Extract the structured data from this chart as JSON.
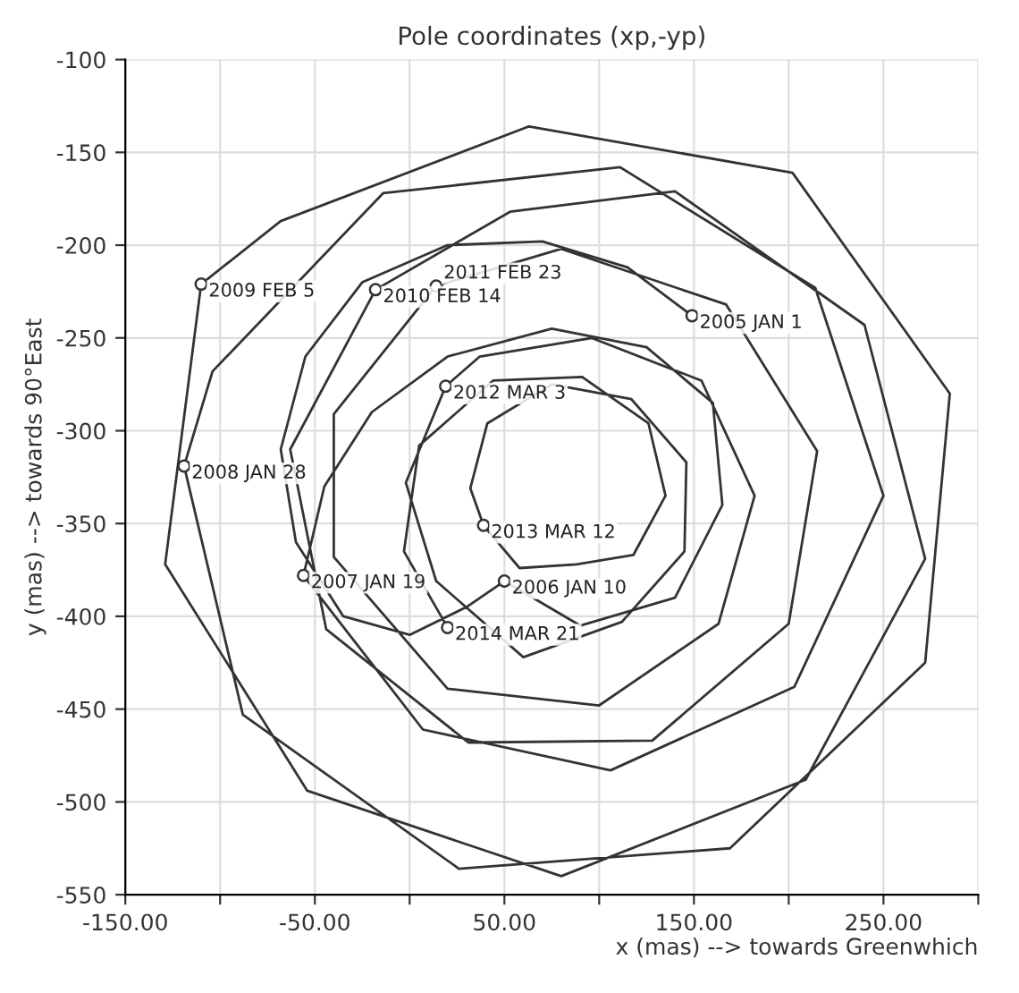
{
  "chart_data": {
    "type": "line",
    "title": "Pole coordinates (xp,-yp)",
    "xlabel": "x (mas) --> towards Greenwhich",
    "ylabel": "y (mas) --> towards 90°East",
    "xlim": [
      -150,
      300
    ],
    "ylim": [
      -550,
      -100
    ],
    "xticks": [
      {
        "value": -150,
        "label": "-150.00"
      },
      {
        "value": -100,
        "label": null
      },
      {
        "value": -50,
        "label": "-50.00"
      },
      {
        "value": 0,
        "label": null
      },
      {
        "value": 50,
        "label": "50.00"
      },
      {
        "value": 100,
        "label": null
      },
      {
        "value": 150,
        "label": "150.00"
      },
      {
        "value": 200,
        "label": null
      },
      {
        "value": 250,
        "label": "250.00"
      },
      {
        "value": 300,
        "label": null
      }
    ],
    "yticks": [
      -100,
      -150,
      -200,
      -250,
      -300,
      -350,
      -400,
      -450,
      -500,
      -550
    ],
    "grid": true,
    "marker": "none",
    "line_style": "solid",
    "series": [
      {
        "color": "#333333",
        "x": [
          149,
          115,
          70,
          20,
          -25,
          -55,
          -68,
          -60,
          -35,
          0,
          30,
          50,
          90,
          140,
          165,
          160,
          125,
          75,
          20,
          -20,
          -45,
          -56,
          7,
          106,
          203,
          250,
          214,
          111,
          -14,
          -104,
          -119,
          -88,
          26,
          169,
          272,
          285,
          202,
          63,
          -68,
          -110,
          -129,
          -54,
          80,
          209,
          272,
          240,
          140,
          53,
          -18,
          -63,
          -44,
          31,
          128,
          200,
          215,
          167,
          80,
          14,
          -40,
          -40,
          20,
          100,
          163,
          182,
          154,
          96,
          37,
          19,
          -2,
          14,
          60,
          112,
          145,
          146,
          117,
          75,
          41,
          32,
          39,
          58,
          88,
          118,
          135,
          126,
          91,
          44,
          5,
          -3,
          20
        ],
        "values": [
          -238,
          -212,
          -198,
          -200,
          -220,
          -260,
          -310,
          -360,
          -400,
          -410,
          -395,
          -381,
          -405,
          -390,
          -340,
          -285,
          -255,
          -245,
          -260,
          -290,
          -330,
          -378,
          -461,
          -483,
          -438,
          -335,
          -223,
          -158,
          -172,
          -268,
          -319,
          -453,
          -536,
          -525,
          -425,
          -280,
          -161,
          -136,
          -187,
          -221,
          -372,
          -494,
          -540,
          -488,
          -369,
          -243,
          -171,
          -182,
          -224,
          -310,
          -407,
          -468,
          -467,
          -404,
          -311,
          -232,
          -202,
          -222,
          -291,
          -368,
          -439,
          -448,
          -404,
          -335,
          -273,
          -250,
          -260,
          -276,
          -328,
          -381,
          -422,
          -403,
          -365,
          -317,
          -283,
          -275,
          -296,
          -331,
          -351,
          -374,
          -372,
          -367,
          -335,
          -296,
          -271,
          -273,
          -308,
          -365,
          -406
        ]
      }
    ],
    "annotations": [
      {
        "text": "2005 JAN 1",
        "x": 149,
        "y": -238
      },
      {
        "text": "2006 JAN 10",
        "x": 50,
        "y": -381
      },
      {
        "text": "2007 JAN 19",
        "x": -56,
        "y": -378
      },
      {
        "text": "2008 JAN 28",
        "x": -119,
        "y": -319
      },
      {
        "text": "2009 FEB 5",
        "x": -110,
        "y": -221
      },
      {
        "text": "2010 FEB 14",
        "x": -18,
        "y": -224
      },
      {
        "text": "2011 FEB 23",
        "x": 14,
        "y": -222
      },
      {
        "text": "2012 MAR 3",
        "x": 19,
        "y": -276
      },
      {
        "text": "2013 MAR 12",
        "x": 39,
        "y": -351
      },
      {
        "text": "2014 MAR 21",
        "x": 20,
        "y": -406
      }
    ]
  }
}
